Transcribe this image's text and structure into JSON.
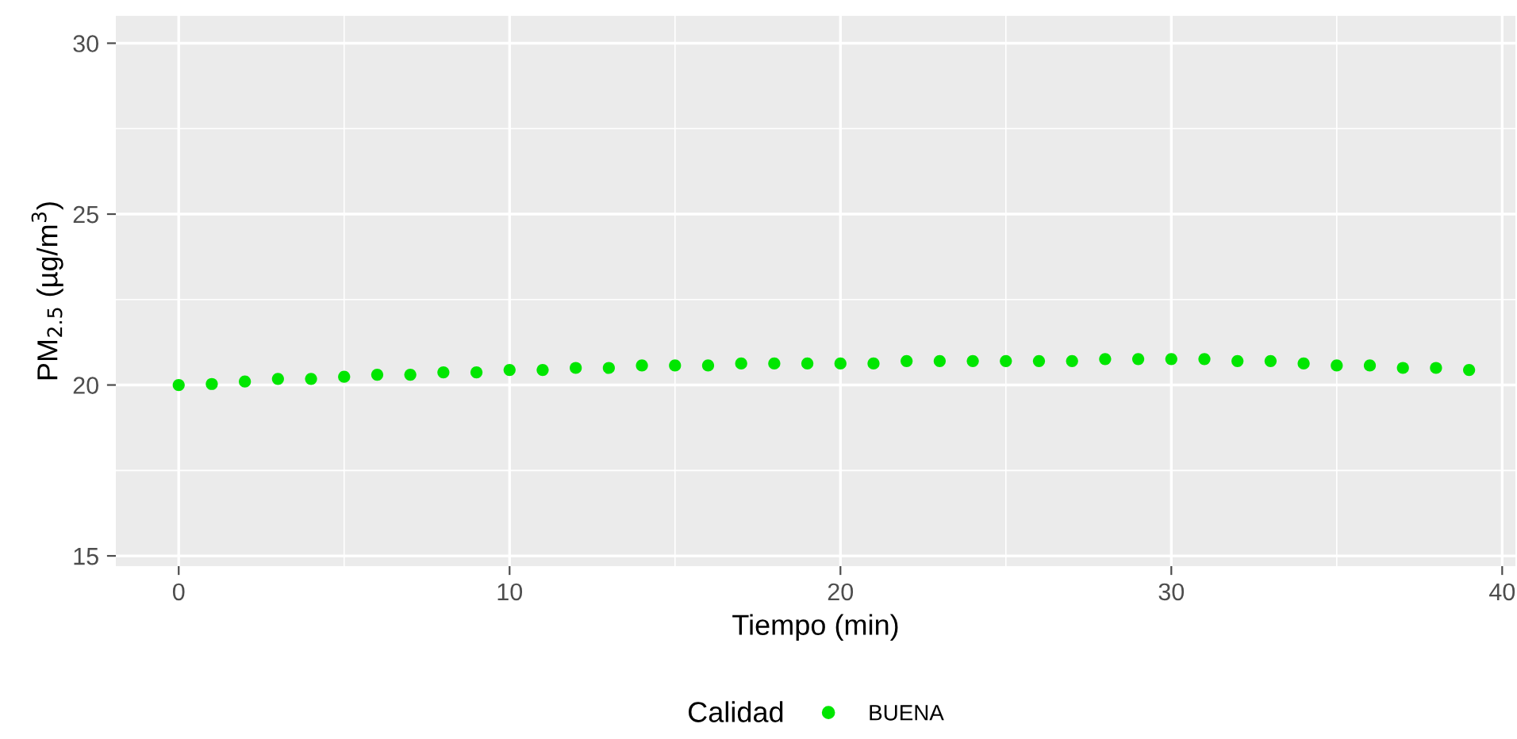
{
  "chart_data": {
    "type": "scatter",
    "xlabel": "Tiempo (min)",
    "ylabel": "PM$_{2.5}$ (µg/m$^{3}$)",
    "legend_title": "Calidad",
    "x": [
      0,
      1,
      2,
      3,
      4,
      5,
      6,
      7,
      8,
      9,
      10,
      11,
      12,
      13,
      14,
      15,
      16,
      17,
      18,
      19,
      20,
      21,
      22,
      23,
      24,
      25,
      26,
      27,
      28,
      29,
      30,
      31,
      32,
      33,
      34,
      35,
      36,
      37,
      38,
      39
    ],
    "series": [
      {
        "name": "BUENA",
        "color": "#00e600",
        "values": [
          20.0,
          20.03,
          20.1,
          20.18,
          20.18,
          20.24,
          20.3,
          20.3,
          20.37,
          20.37,
          20.44,
          20.44,
          20.5,
          20.5,
          20.57,
          20.57,
          20.57,
          20.63,
          20.63,
          20.63,
          20.63,
          20.63,
          20.7,
          20.7,
          20.7,
          20.7,
          20.7,
          20.7,
          20.76,
          20.76,
          20.76,
          20.76,
          20.7,
          20.7,
          20.63,
          20.57,
          20.57,
          20.5,
          20.5,
          20.44
        ]
      }
    ],
    "xlim": [
      -1.9,
      40.4
    ],
    "ylim": [
      14.7,
      30.8
    ],
    "xticks": [
      0,
      10,
      20,
      30,
      40
    ],
    "yticks": [
      15,
      20,
      25,
      30
    ],
    "grid": true,
    "legend": "bottom"
  }
}
